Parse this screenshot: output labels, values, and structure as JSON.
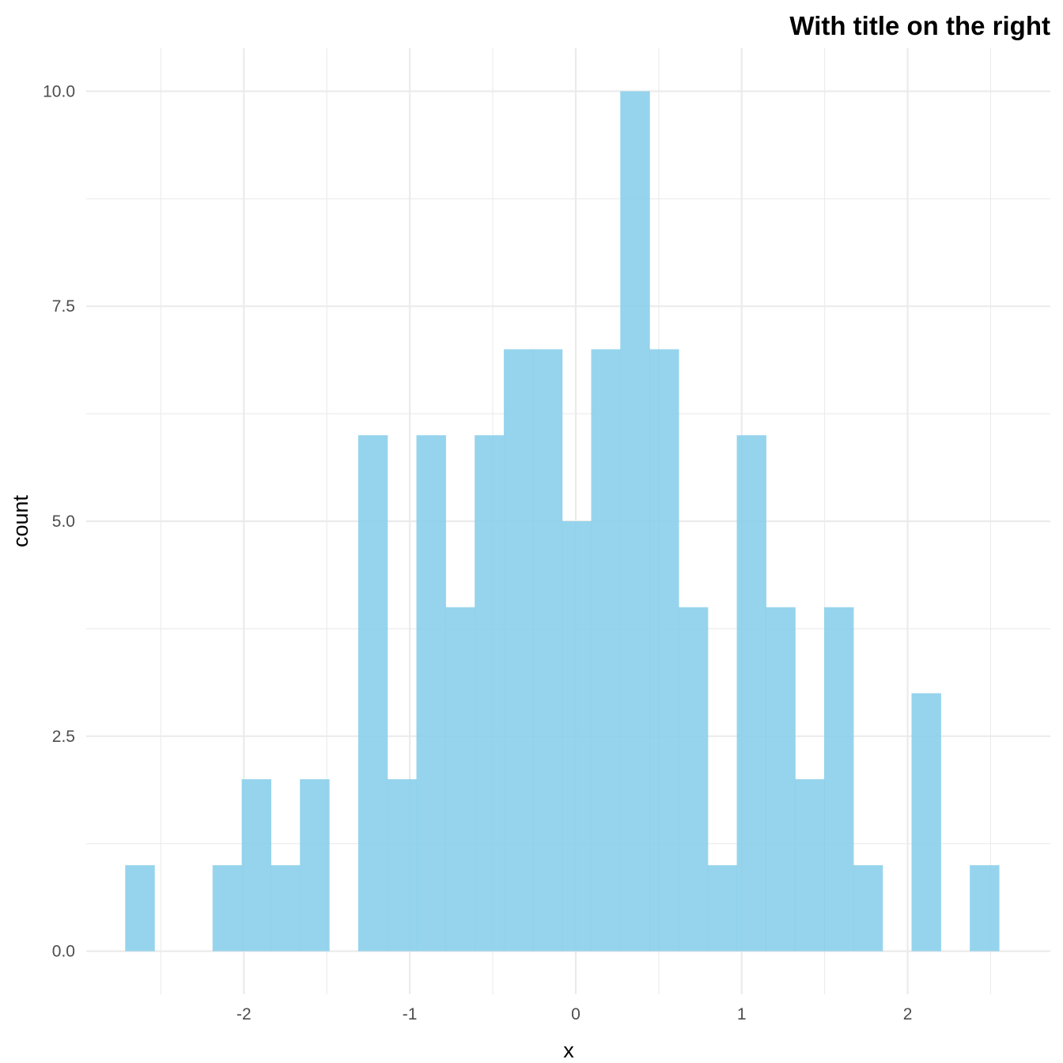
{
  "chart_data": {
    "type": "bar",
    "subtype": "histogram",
    "title": "With title on the right",
    "title_align": "right",
    "xlabel": "x",
    "ylabel": "count",
    "xlim": [
      -2.95,
      2.86
    ],
    "ylim": [
      -0.5,
      10.5
    ],
    "x_ticks": [
      -2,
      -1,
      0,
      1,
      2
    ],
    "x_tick_labels": [
      "-2",
      "-1",
      "0",
      "1",
      "2"
    ],
    "x_minor_ticks": [
      -2.5,
      -1.5,
      -0.5,
      0.5,
      1.5,
      2.5
    ],
    "y_ticks": [
      0,
      2.5,
      5,
      7.5,
      10
    ],
    "y_tick_labels": [
      "0.0",
      "2.5",
      "5.0",
      "7.5",
      "10.0"
    ],
    "y_minor_ticks": [
      1.25,
      3.75,
      6.25,
      8.75
    ],
    "grid": true,
    "bar_color": "#87CEEB",
    "bar_opacity": 0.88,
    "bin_start": -2.715,
    "bin_width": 0.1755,
    "values": [
      1,
      0,
      0,
      1,
      2,
      1,
      2,
      0,
      6,
      2,
      6,
      4,
      6,
      7,
      7,
      5,
      7,
      10,
      7,
      4,
      1,
      6,
      4,
      2,
      4,
      1,
      0,
      3,
      0,
      1
    ]
  }
}
